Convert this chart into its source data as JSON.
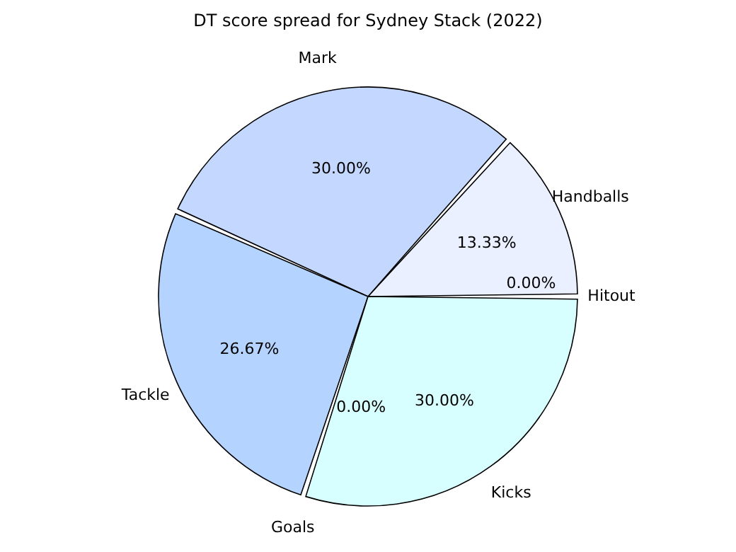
{
  "chart_data": {
    "type": "pie",
    "title": "DT score spread for Sydney Stack (2022)",
    "categories": [
      "Hitout",
      "Handballs",
      "Mark",
      "Tackle",
      "Goals",
      "Kicks"
    ],
    "values": [
      0,
      13.33,
      30,
      26.67,
      0,
      30
    ],
    "value_labels": [
      "0.00%",
      "13.33%",
      "30.00%",
      "26.67%",
      "0.00%",
      "30.00%"
    ],
    "colors": [
      "#e6f0ff",
      "#eaf0ff",
      "#c4d8ff",
      "#b4d4ff",
      "#c8e0ff",
      "#d8ffff"
    ],
    "legend": false
  }
}
